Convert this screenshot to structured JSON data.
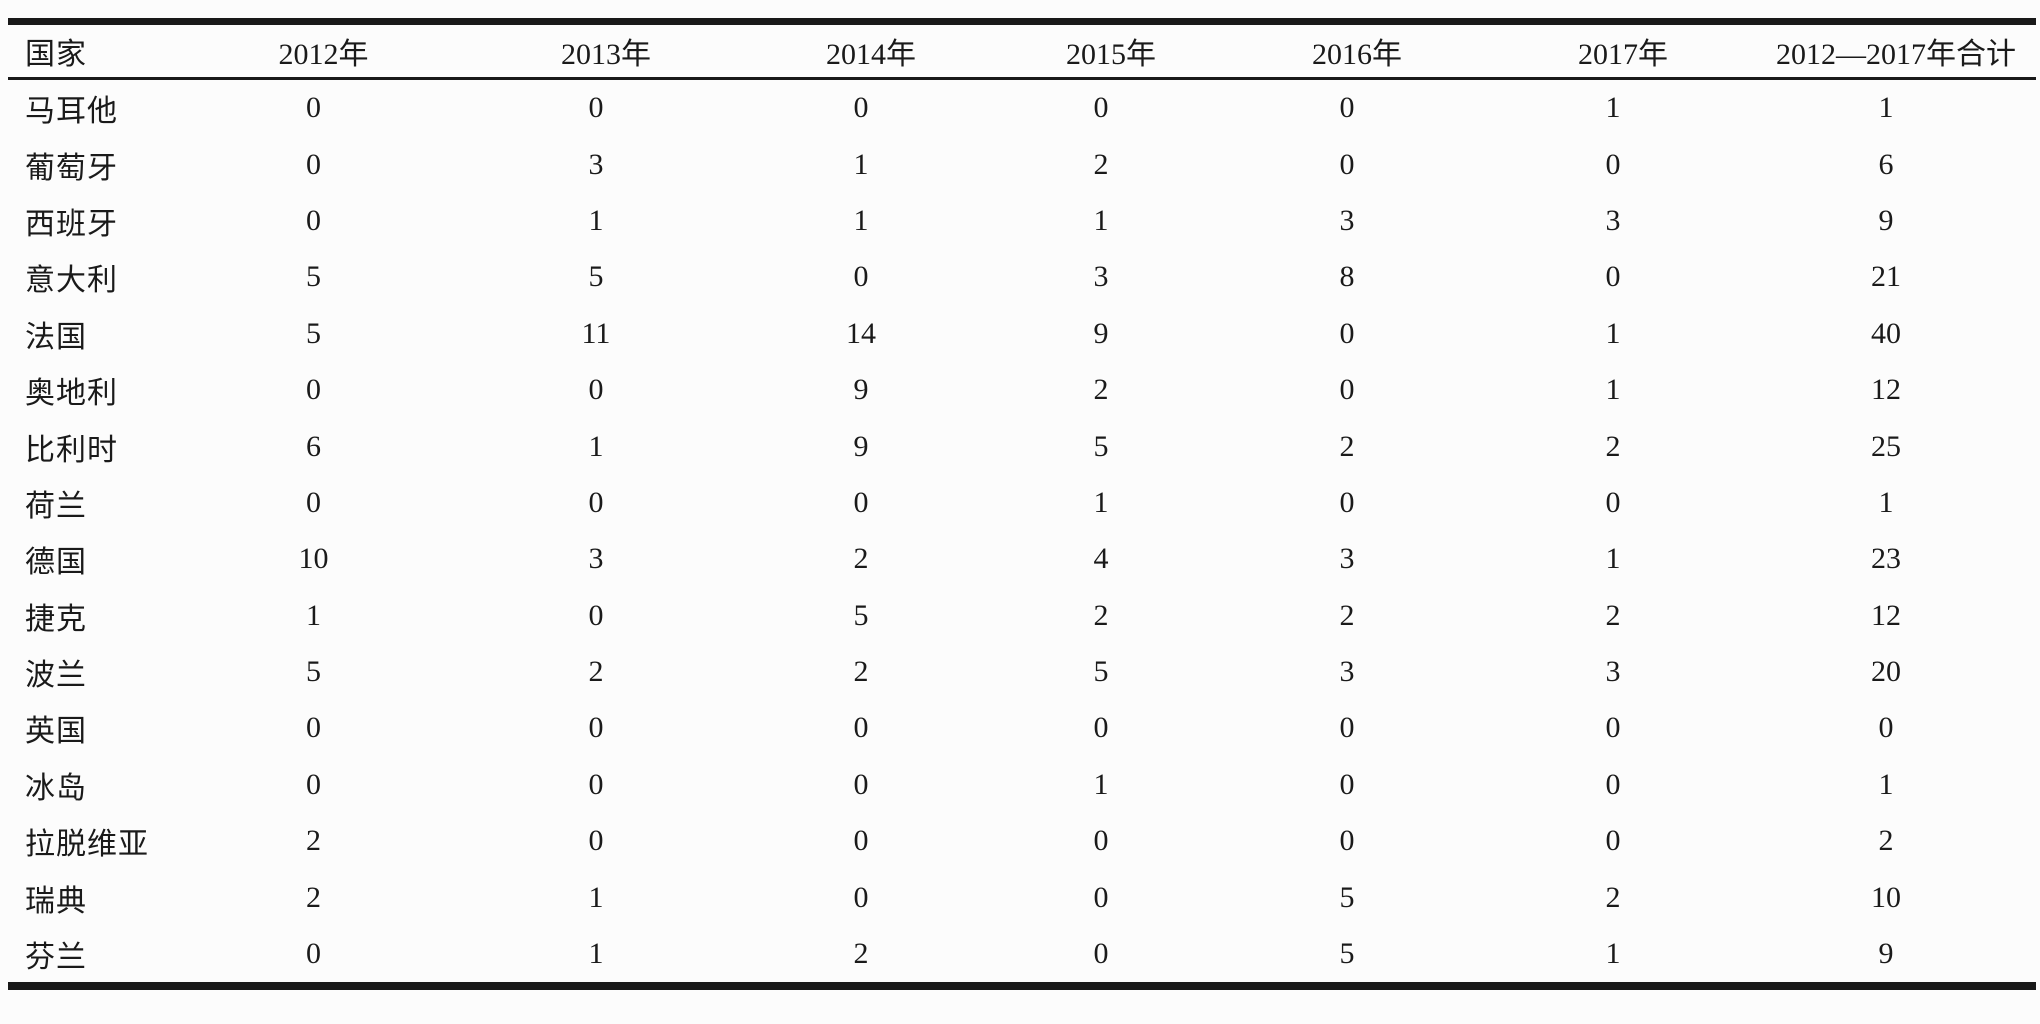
{
  "table": {
    "columns": [
      "国家",
      "2012年",
      "2013年",
      "2014年",
      "2015年",
      "2016年",
      "2017年",
      "2012—2017年合计"
    ],
    "rows": [
      [
        "马耳他",
        "0",
        "0",
        "0",
        "0",
        "0",
        "1",
        "1"
      ],
      [
        "葡萄牙",
        "0",
        "3",
        "1",
        "2",
        "0",
        "0",
        "6"
      ],
      [
        "西班牙",
        "0",
        "1",
        "1",
        "1",
        "3",
        "3",
        "9"
      ],
      [
        "意大利",
        "5",
        "5",
        "0",
        "3",
        "8",
        "0",
        "21"
      ],
      [
        "法国",
        "5",
        "11",
        "14",
        "9",
        "0",
        "1",
        "40"
      ],
      [
        "奥地利",
        "0",
        "0",
        "9",
        "2",
        "0",
        "1",
        "12"
      ],
      [
        "比利时",
        "6",
        "1",
        "9",
        "5",
        "2",
        "2",
        "25"
      ],
      [
        "荷兰",
        "0",
        "0",
        "0",
        "1",
        "0",
        "0",
        "1"
      ],
      [
        "德国",
        "10",
        "3",
        "2",
        "4",
        "3",
        "1",
        "23"
      ],
      [
        "捷克",
        "1",
        "0",
        "5",
        "2",
        "2",
        "2",
        "12"
      ],
      [
        "波兰",
        "5",
        "2",
        "2",
        "5",
        "3",
        "3",
        "20"
      ],
      [
        "英国",
        "0",
        "0",
        "0",
        "0",
        "0",
        "0",
        "0"
      ],
      [
        "冰岛",
        "0",
        "0",
        "0",
        "1",
        "0",
        "0",
        "1"
      ],
      [
        "拉脱维亚",
        "2",
        "0",
        "0",
        "0",
        "0",
        "0",
        "2"
      ],
      [
        "瑞典",
        "2",
        "1",
        "0",
        "0",
        "5",
        "2",
        "10"
      ],
      [
        "芬兰",
        "0",
        "1",
        "2",
        "0",
        "5",
        "1",
        "9"
      ]
    ]
  },
  "colors": {
    "rule_line": "#191919",
    "text": "#1a1a1a",
    "background": "#fcfcfc"
  }
}
